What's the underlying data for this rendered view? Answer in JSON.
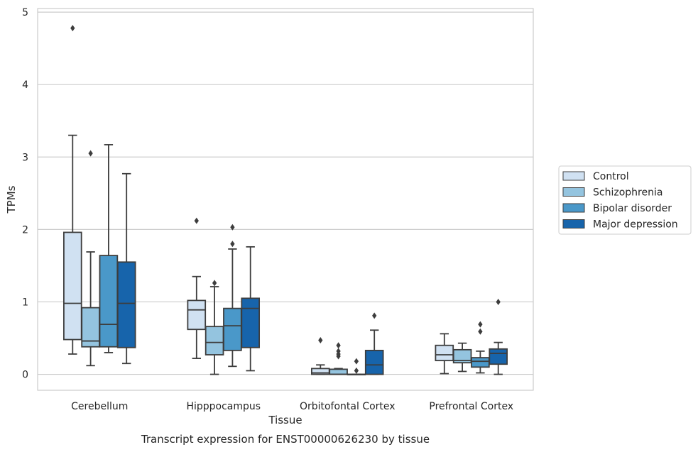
{
  "chart_data": {
    "type": "box",
    "title": "",
    "caption": "Transcript expression for ENST00000626230 by tissue",
    "xlabel": "Tissue",
    "ylabel": "TPMs",
    "ylim": [
      -0.22,
      5.05
    ],
    "yticks": [
      "0",
      "1",
      "2",
      "3",
      "4",
      "5"
    ],
    "grid": "horizontal",
    "legend_position": "right",
    "categories": [
      "Cerebellum",
      "Hipppocampus",
      "Orbitofontal Cortex",
      "Prefrontal Cortex"
    ],
    "series": [
      {
        "name": "Control",
        "color": "#d0e1f2",
        "boxes": [
          {
            "whisker_low": 0.28,
            "q1": 0.48,
            "median": 0.98,
            "q3": 1.96,
            "whisker_high": 3.3,
            "outliers": [
              4.78
            ]
          },
          {
            "whisker_low": 0.22,
            "q1": 0.62,
            "median": 0.89,
            "q3": 1.02,
            "whisker_high": 1.35,
            "outliers": [
              2.12
            ]
          },
          {
            "whisker_low": 0.0,
            "q1": 0.0,
            "median": 0.02,
            "q3": 0.08,
            "whisker_high": 0.13,
            "outliers": [
              0.47
            ]
          },
          {
            "whisker_low": 0.01,
            "q1": 0.19,
            "median": 0.27,
            "q3": 0.4,
            "whisker_high": 0.56,
            "outliers": []
          }
        ]
      },
      {
        "name": "Schizophrenia",
        "color": "#94c4df",
        "boxes": [
          {
            "whisker_low": 0.12,
            "q1": 0.38,
            "median": 0.46,
            "q3": 0.92,
            "whisker_high": 1.69,
            "outliers": [
              3.05
            ]
          },
          {
            "whisker_low": 0.0,
            "q1": 0.27,
            "median": 0.44,
            "q3": 0.66,
            "whisker_high": 1.21,
            "outliers": [
              1.26
            ]
          },
          {
            "whisker_low": 0.0,
            "q1": 0.0,
            "median": 0.0,
            "q3": 0.07,
            "whisker_high": 0.08,
            "outliers": [
              0.4,
              0.32,
              0.28,
              0.25
            ]
          },
          {
            "whisker_low": 0.04,
            "q1": 0.16,
            "median": 0.19,
            "q3": 0.34,
            "whisker_high": 0.43,
            "outliers": []
          }
        ]
      },
      {
        "name": "Bipolar disorder",
        "color": "#4a98c9",
        "boxes": [
          {
            "whisker_low": 0.3,
            "q1": 0.38,
            "median": 0.69,
            "q3": 1.64,
            "whisker_high": 3.17,
            "outliers": []
          },
          {
            "whisker_low": 0.11,
            "q1": 0.33,
            "median": 0.67,
            "q3": 0.91,
            "whisker_high": 1.73,
            "outliers": [
              2.03,
              1.8
            ]
          },
          {
            "whisker_low": 0.0,
            "q1": 0.0,
            "median": 0.0,
            "q3": 0.0,
            "whisker_high": 0.0,
            "outliers": [
              0.18,
              0.05
            ]
          },
          {
            "whisker_low": 0.02,
            "q1": 0.1,
            "median": 0.18,
            "q3": 0.23,
            "whisker_high": 0.32,
            "outliers": [
              0.69,
              0.59
            ]
          }
        ]
      },
      {
        "name": "Major depression",
        "color": "#1764ab",
        "boxes": [
          {
            "whisker_low": 0.15,
            "q1": 0.37,
            "median": 0.98,
            "q3": 1.55,
            "whisker_high": 2.77,
            "outliers": []
          },
          {
            "whisker_low": 0.05,
            "q1": 0.37,
            "median": 0.91,
            "q3": 1.05,
            "whisker_high": 1.76,
            "outliers": []
          },
          {
            "whisker_low": 0.0,
            "q1": 0.0,
            "median": 0.13,
            "q3": 0.33,
            "whisker_high": 0.61,
            "outliers": [
              0.81
            ]
          },
          {
            "whisker_low": 0.0,
            "q1": 0.14,
            "median": 0.29,
            "q3": 0.35,
            "whisker_high": 0.44,
            "outliers": [
              1.0
            ]
          }
        ]
      }
    ]
  }
}
